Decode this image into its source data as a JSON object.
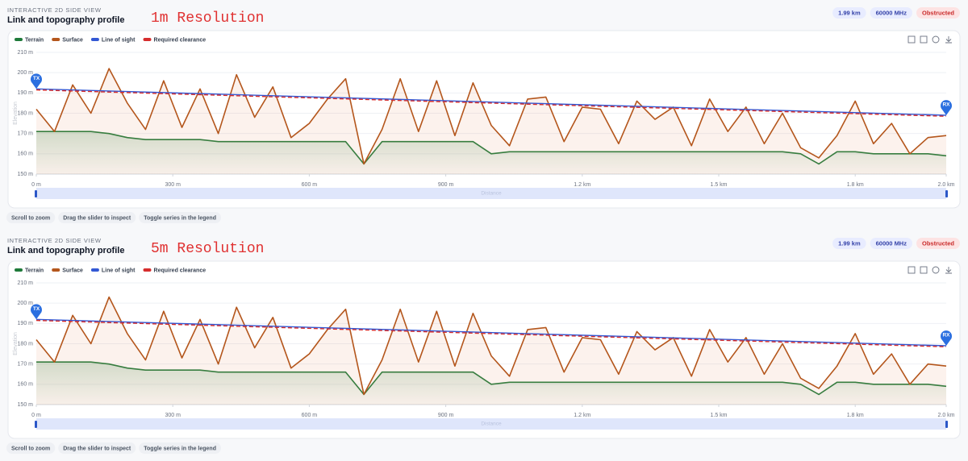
{
  "chart_data": [
    {
      "type": "line",
      "eyebrow": "INTERACTIVE 2D SIDE VIEW",
      "title": "Link and topography profile",
      "annotation": "1m Resolution",
      "badges": [
        "1.99 km",
        "60000 MHz",
        "Obstructed"
      ],
      "hints": [
        "Scroll to zoom",
        "Drag the slider to inspect",
        "Toggle series in the legend"
      ],
      "endpoints": [
        "TX",
        "RX"
      ],
      "xlabel": "Distance",
      "ylabel": "Elevation",
      "grid": true,
      "xlim": [
        0,
        2000
      ],
      "ylim": [
        150,
        210
      ],
      "xticks": [
        {
          "value": 0,
          "label": "0 m"
        },
        {
          "value": 300,
          "label": "300 m"
        },
        {
          "value": 600,
          "label": "600 m"
        },
        {
          "value": 900,
          "label": "900 m"
        },
        {
          "value": 1200,
          "label": "1.2 km"
        },
        {
          "value": 1500,
          "label": "1.5 km"
        },
        {
          "value": 1800,
          "label": "1.8 km"
        },
        {
          "value": 2000,
          "label": "2.0 km"
        }
      ],
      "yticks": [
        {
          "value": 150,
          "label": "150 m"
        },
        {
          "value": 160,
          "label": "160 m"
        },
        {
          "value": 170,
          "label": "170 m"
        },
        {
          "value": 180,
          "label": "180 m"
        },
        {
          "value": 190,
          "label": "190 m"
        },
        {
          "value": 200,
          "label": "200 m"
        },
        {
          "value": 210,
          "label": "210 m"
        }
      ],
      "x": [
        0,
        40,
        80,
        120,
        160,
        200,
        240,
        280,
        320,
        360,
        400,
        440,
        480,
        520,
        560,
        600,
        640,
        680,
        720,
        760,
        800,
        840,
        880,
        920,
        960,
        1000,
        1040,
        1080,
        1120,
        1160,
        1200,
        1240,
        1280,
        1320,
        1360,
        1400,
        1440,
        1480,
        1520,
        1560,
        1600,
        1640,
        1680,
        1720,
        1760,
        1800,
        1840,
        1880,
        1920,
        1960,
        2000
      ],
      "series": [
        {
          "name": "Terrain",
          "color": "#1f7a3a",
          "area": true,
          "values": [
            171,
            171,
            171,
            171,
            170,
            168,
            167,
            167,
            167,
            167,
            166,
            166,
            166,
            166,
            166,
            166,
            166,
            166,
            155,
            166,
            166,
            166,
            166,
            166,
            166,
            160,
            161,
            161,
            161,
            161,
            161,
            161,
            161,
            161,
            161,
            161,
            161,
            161,
            161,
            161,
            161,
            161,
            160,
            155,
            161,
            161,
            160,
            160,
            160,
            160,
            159
          ]
        },
        {
          "name": "Surface",
          "color": "#b4561c",
          "area": true,
          "values": [
            182,
            171,
            194,
            180,
            202,
            185,
            172,
            196,
            173,
            192,
            170,
            199,
            178,
            193,
            168,
            175,
            187,
            197,
            155,
            172,
            197,
            171,
            196,
            169,
            195,
            174,
            164,
            187,
            188,
            166,
            183,
            182,
            165,
            186,
            177,
            183,
            164,
            187,
            171,
            183,
            165,
            180,
            163,
            158,
            169,
            186,
            165,
            175,
            160,
            168,
            169
          ]
        },
        {
          "name": "Line of sight",
          "color": "#3358d4",
          "x": [
            0,
            2000
          ],
          "values": [
            192,
            179
          ]
        },
        {
          "name": "Required clearance",
          "color": "#d62d2d",
          "dash": true,
          "x": [
            0,
            2000
          ],
          "values": [
            191.5,
            178.5
          ]
        }
      ]
    },
    {
      "type": "line",
      "eyebrow": "INTERACTIVE 2D SIDE VIEW",
      "title": "Link and topography profile",
      "annotation": "5m Resolution",
      "badges": [
        "1.99 km",
        "60000 MHz",
        "Obstructed"
      ],
      "hints": [
        "Scroll to zoom",
        "Drag the slider to inspect",
        "Toggle series in the legend"
      ],
      "endpoints": [
        "TX",
        "RX"
      ],
      "xlabel": "Distance",
      "ylabel": "Elevation",
      "grid": true,
      "xlim": [
        0,
        2000
      ],
      "ylim": [
        150,
        210
      ],
      "xticks": [
        {
          "value": 0,
          "label": "0 m"
        },
        {
          "value": 300,
          "label": "300 m"
        },
        {
          "value": 600,
          "label": "600 m"
        },
        {
          "value": 900,
          "label": "900 m"
        },
        {
          "value": 1200,
          "label": "1.2 km"
        },
        {
          "value": 1500,
          "label": "1.5 km"
        },
        {
          "value": 1800,
          "label": "1.8 km"
        },
        {
          "value": 2000,
          "label": "2.0 km"
        }
      ],
      "yticks": [
        {
          "value": 150,
          "label": "150 m"
        },
        {
          "value": 160,
          "label": "160 m"
        },
        {
          "value": 170,
          "label": "170 m"
        },
        {
          "value": 180,
          "label": "180 m"
        },
        {
          "value": 190,
          "label": "190 m"
        },
        {
          "value": 200,
          "label": "200 m"
        },
        {
          "value": 210,
          "label": "210 m"
        }
      ],
      "x": [
        0,
        40,
        80,
        120,
        160,
        200,
        240,
        280,
        320,
        360,
        400,
        440,
        480,
        520,
        560,
        600,
        640,
        680,
        720,
        760,
        800,
        840,
        880,
        920,
        960,
        1000,
        1040,
        1080,
        1120,
        1160,
        1200,
        1240,
        1280,
        1320,
        1360,
        1400,
        1440,
        1480,
        1520,
        1560,
        1600,
        1640,
        1680,
        1720,
        1760,
        1800,
        1840,
        1880,
        1920,
        1960,
        2000
      ],
      "series": [
        {
          "name": "Terrain",
          "color": "#1f7a3a",
          "area": true,
          "values": [
            171,
            171,
            171,
            171,
            170,
            168,
            167,
            167,
            167,
            167,
            166,
            166,
            166,
            166,
            166,
            166,
            166,
            166,
            155,
            166,
            166,
            166,
            166,
            166,
            166,
            160,
            161,
            161,
            161,
            161,
            161,
            161,
            161,
            161,
            161,
            161,
            161,
            161,
            161,
            161,
            161,
            161,
            160,
            155,
            161,
            161,
            160,
            160,
            160,
            160,
            159
          ]
        },
        {
          "name": "Surface",
          "color": "#b4561c",
          "area": true,
          "values": [
            182,
            171,
            194,
            180,
            203,
            185,
            172,
            196,
            173,
            192,
            170,
            198,
            178,
            193,
            168,
            175,
            187,
            197,
            155,
            172,
            197,
            171,
            196,
            169,
            195,
            174,
            164,
            187,
            188,
            166,
            183,
            182,
            165,
            186,
            177,
            183,
            164,
            187,
            171,
            183,
            165,
            180,
            163,
            158,
            169,
            185,
            165,
            175,
            160,
            170,
            169
          ]
        },
        {
          "name": "Line of sight",
          "color": "#3358d4",
          "x": [
            0,
            2000
          ],
          "values": [
            192,
            179
          ]
        },
        {
          "name": "Required clearance",
          "color": "#d62d2d",
          "dash": true,
          "x": [
            0,
            2000
          ],
          "values": [
            191.5,
            178.5
          ]
        }
      ]
    }
  ]
}
